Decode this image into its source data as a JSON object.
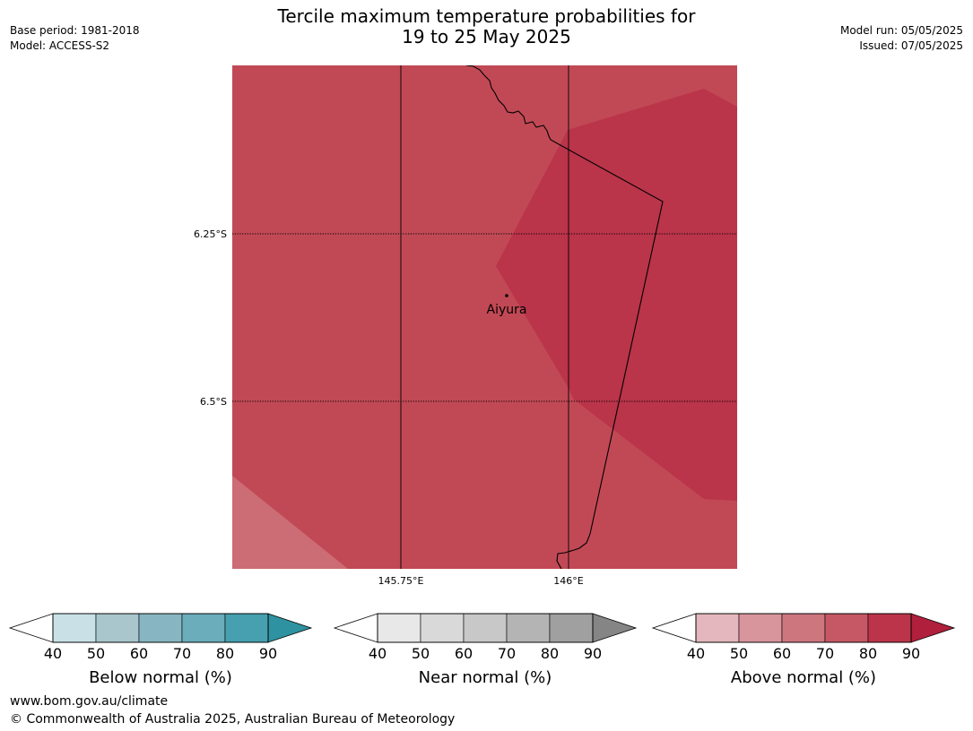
{
  "header": {
    "title_line1": "Tercile maximum temperature probabilities for",
    "title_line2": "19 to 25 May 2025",
    "base_period": "Base period: 1981-2018",
    "model": "Model: ACCESS-S2",
    "model_run": "Model run: 05/05/2025",
    "issued": "Issued: 07/05/2025"
  },
  "map": {
    "lat_labels": [
      "6.25°S",
      "6.5°S"
    ],
    "lon_labels": [
      "145.75°E",
      "146°E"
    ],
    "town": {
      "name": "Aiyura"
    },
    "colors": {
      "level_60_70": "#cc6c74",
      "level_70_80": "#c14955",
      "level_80_90": "#ba344a",
      "coastline": "#000000",
      "gridline": "#000000"
    }
  },
  "colorbars": [
    {
      "title": "Below normal (%)",
      "ticks": [
        "40",
        "50",
        "60",
        "70",
        "80",
        "90"
      ],
      "colors": [
        "#c9e1e6",
        "#a8c6cc",
        "#88b5c2",
        "#6badbb",
        "#46a0af"
      ],
      "arrow_color": "#2f92a0"
    },
    {
      "title": "Near normal (%)",
      "ticks": [
        "40",
        "50",
        "60",
        "70",
        "80",
        "90"
      ],
      "colors": [
        "#e8e8e8",
        "#d9d9d9",
        "#c8c8c8",
        "#b4b4b4",
        "#a0a0a0"
      ],
      "arrow_color": "#858585"
    },
    {
      "title": "Above normal (%)",
      "ticks": [
        "40",
        "50",
        "60",
        "70",
        "80",
        "90"
      ],
      "colors": [
        "#e3b7bd",
        "#d8959c",
        "#ce767e",
        "#c55864",
        "#bb344a"
      ],
      "arrow_color": "#b01f3b"
    }
  ],
  "footer": {
    "website": "www.bom.gov.au/climate",
    "copyright": "© Commonwealth of Australia 2025, Australian Bureau of Meteorology"
  }
}
